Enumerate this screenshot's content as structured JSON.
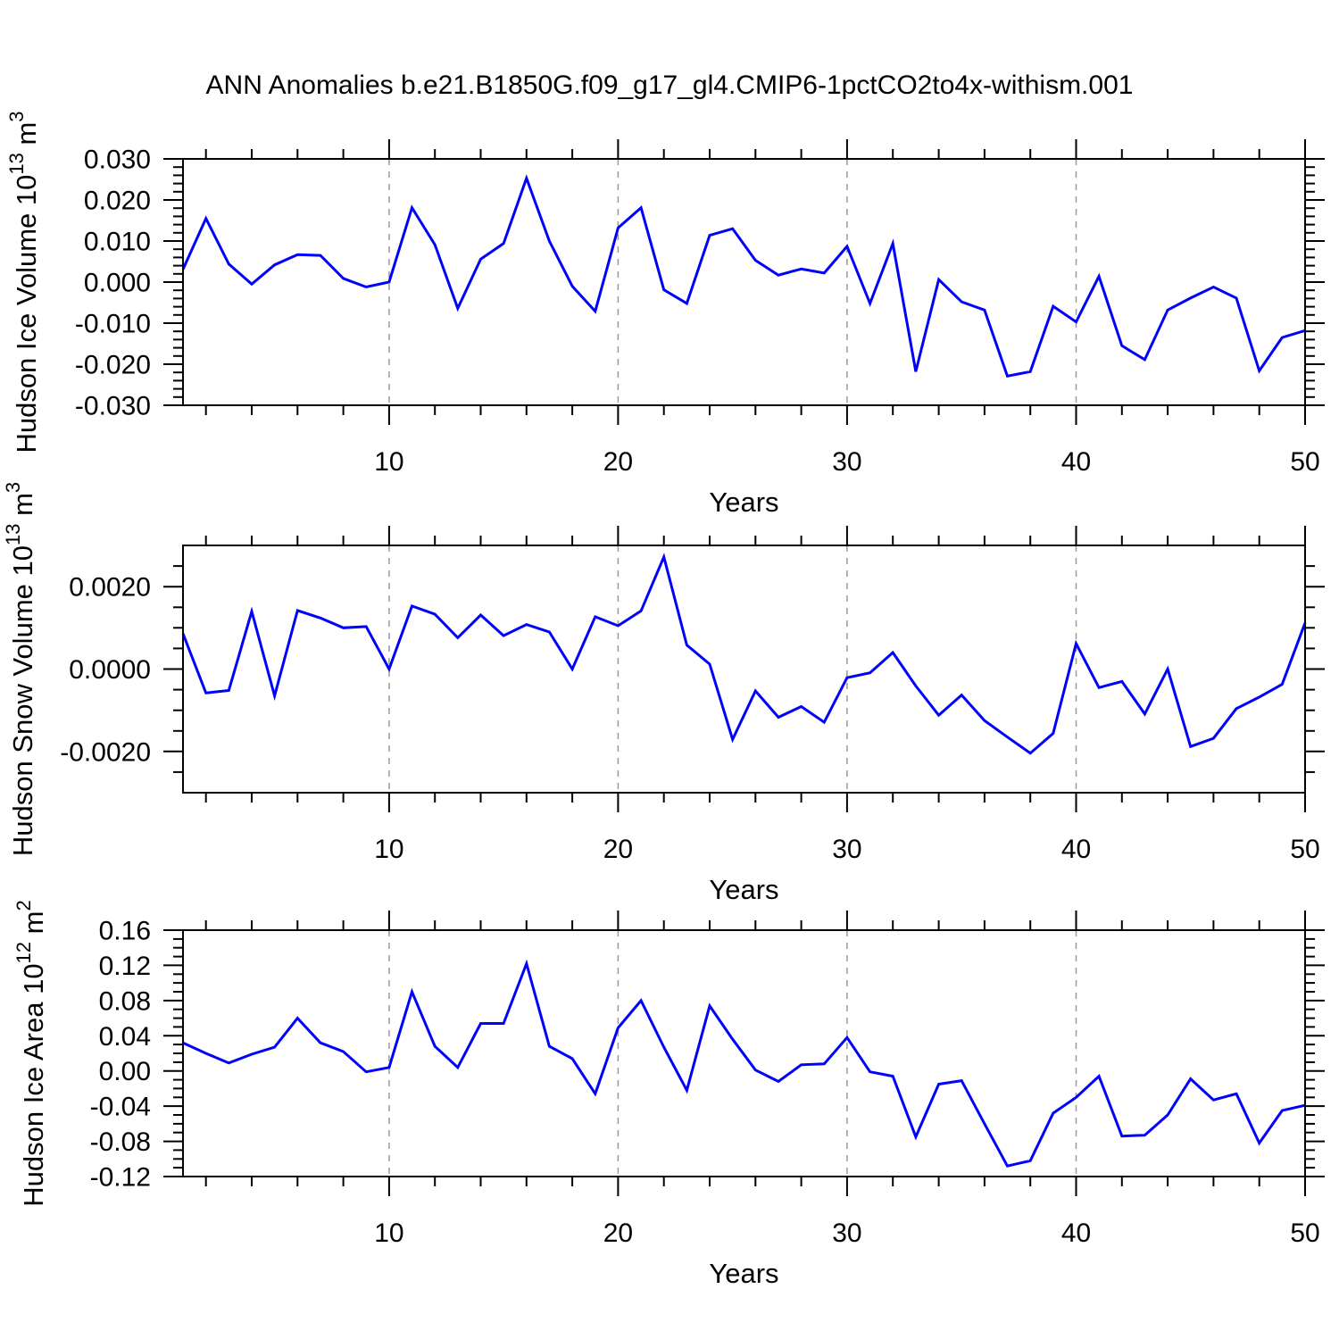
{
  "title": "ANN Anomalies b.e21.B1850G.f09_g17_gl4.CMIP6-1pctCO2to4x-withism.001",
  "line_color": "#0000ff",
  "grid_color": "#999999",
  "axis_color": "#000000",
  "chart_data": [
    {
      "type": "line",
      "name": "hudson-ice-volume",
      "xlabel": "Years",
      "ylabel_parts": [
        {
          "text": "Hudson Ice Volume 10",
          "sup": false
        },
        {
          "text": "13",
          "sup": true
        },
        {
          "text": " m",
          "sup": false
        },
        {
          "text": "3",
          "sup": true
        }
      ],
      "x_range": [
        1,
        50
      ],
      "values": [
        0.0031,
        0.0155,
        0.0044,
        -0.0005,
        0.0042,
        0.0067,
        0.0065,
        0.0009,
        -0.0012,
        0.0,
        0.0181,
        0.0091,
        -0.0064,
        0.0056,
        0.0094,
        0.0253,
        0.01,
        -0.001,
        -0.0071,
        0.0132,
        0.0181,
        -0.0019,
        -0.0052,
        0.0114,
        0.013,
        0.0053,
        0.0017,
        0.0032,
        0.0022,
        0.0087,
        -0.0052,
        0.0094,
        -0.0218,
        0.0006,
        -0.0048,
        -0.0068,
        -0.0229,
        -0.0218,
        -0.0059,
        -0.0097,
        0.0014,
        -0.0155,
        -0.0189,
        -0.0068,
        -0.0039,
        -0.0012,
        -0.0039,
        -0.0216,
        -0.0135,
        -0.0118
      ],
      "ylim": [
        -0.03,
        0.03
      ],
      "yticks": [
        {
          "v": 0.03,
          "label": "0.030"
        },
        {
          "v": 0.02,
          "label": "0.020"
        },
        {
          "v": 0.01,
          "label": "0.010"
        },
        {
          "v": 0.0,
          "label": "0.000"
        },
        {
          "v": -0.01,
          "label": "-0.010"
        },
        {
          "v": -0.02,
          "label": "-0.020"
        },
        {
          "v": -0.03,
          "label": "-0.030"
        }
      ],
      "ytick_minor_step": 0.002,
      "xticks_major": [
        {
          "v": 10,
          "label": "10"
        },
        {
          "v": 20,
          "label": "20"
        },
        {
          "v": 30,
          "label": "30"
        },
        {
          "v": 40,
          "label": "40"
        },
        {
          "v": 50,
          "label": "50"
        }
      ],
      "xtick_minor_step": 2,
      "gridlines_x": [
        10,
        20,
        30,
        40
      ],
      "grid": true,
      "legend": "none"
    },
    {
      "type": "line",
      "name": "hudson-snow-volume",
      "xlabel": "Years",
      "ylabel_parts": [
        {
          "text": "Hudson Snow Volume 10",
          "sup": false
        },
        {
          "text": "13",
          "sup": true
        },
        {
          "text": " m",
          "sup": false
        },
        {
          "text": "3",
          "sup": true
        }
      ],
      "x_range": [
        1,
        50
      ],
      "values": [
        0.00086,
        -0.00058,
        -0.00052,
        0.0014,
        -0.00065,
        0.00142,
        0.00124,
        0.001,
        0.00103,
        0.0,
        0.00153,
        0.00133,
        0.00076,
        0.00131,
        0.00081,
        0.00108,
        0.0009,
        0.0,
        0.00127,
        0.00105,
        0.00141,
        0.00272,
        0.00058,
        0.00012,
        -0.00171,
        -0.00053,
        -0.00117,
        -0.00091,
        -0.00129,
        -0.00021,
        -9e-05,
        0.0004,
        -0.00041,
        -0.00112,
        -0.00063,
        -0.00125,
        -0.00165,
        -0.00204,
        -0.00156,
        0.00062,
        -0.00045,
        -0.0003,
        -0.00109,
        0.0,
        -0.00188,
        -0.00168,
        -0.00096,
        -0.00068,
        -0.00037,
        0.00112
      ],
      "ylim": [
        -0.003,
        0.003
      ],
      "yticks": [
        {
          "v": 0.002,
          "label": "0.0020"
        },
        {
          "v": 0.0,
          "label": "0.0000"
        },
        {
          "v": -0.002,
          "label": "-0.0020"
        }
      ],
      "ytick_minor_step": 0.0005,
      "xticks_major": [
        {
          "v": 10,
          "label": "10"
        },
        {
          "v": 20,
          "label": "20"
        },
        {
          "v": 30,
          "label": "30"
        },
        {
          "v": 40,
          "label": "40"
        },
        {
          "v": 50,
          "label": "50"
        }
      ],
      "xtick_minor_step": 2,
      "gridlines_x": [
        10,
        20,
        30,
        40
      ],
      "grid": true,
      "legend": "none"
    },
    {
      "type": "line",
      "name": "hudson-ice-area",
      "xlabel": "Years",
      "ylabel_parts": [
        {
          "text": "Hudson Ice Area 10",
          "sup": false
        },
        {
          "text": "12",
          "sup": true
        },
        {
          "text": " m",
          "sup": false
        },
        {
          "text": "2",
          "sup": true
        }
      ],
      "x_range": [
        1,
        50
      ],
      "values": [
        0.032,
        0.02,
        0.009,
        0.019,
        0.027,
        0.06,
        0.032,
        0.022,
        -0.001,
        0.004,
        0.09,
        0.028,
        0.004,
        0.054,
        0.054,
        0.122,
        0.028,
        0.014,
        -0.026,
        0.049,
        0.08,
        0.027,
        -0.022,
        0.074,
        0.036,
        0.001,
        -0.012,
        0.007,
        0.008,
        0.038,
        -0.001,
        -0.006,
        -0.075,
        -0.015,
        -0.011,
        -0.06,
        -0.108,
        -0.102,
        -0.048,
        -0.03,
        -0.006,
        -0.074,
        -0.073,
        -0.05,
        -0.009,
        -0.033,
        -0.026,
        -0.082,
        -0.045,
        -0.039
      ],
      "ylim": [
        -0.12,
        0.16
      ],
      "yticks": [
        {
          "v": 0.16,
          "label": "0.16"
        },
        {
          "v": 0.12,
          "label": "0.12"
        },
        {
          "v": 0.08,
          "label": "0.08"
        },
        {
          "v": 0.04,
          "label": "0.04"
        },
        {
          "v": 0.0,
          "label": "0.00"
        },
        {
          "v": -0.04,
          "label": "-0.04"
        },
        {
          "v": -0.08,
          "label": "-0.08"
        },
        {
          "v": -0.12,
          "label": "-0.12"
        }
      ],
      "ytick_minor_step": 0.01,
      "xticks_major": [
        {
          "v": 10,
          "label": "10"
        },
        {
          "v": 20,
          "label": "20"
        },
        {
          "v": 30,
          "label": "30"
        },
        {
          "v": 40,
          "label": "40"
        },
        {
          "v": 50,
          "label": "50"
        }
      ],
      "xtick_minor_step": 2,
      "gridlines_x": [
        10,
        20,
        30,
        40
      ],
      "grid": true,
      "legend": "none"
    }
  ]
}
